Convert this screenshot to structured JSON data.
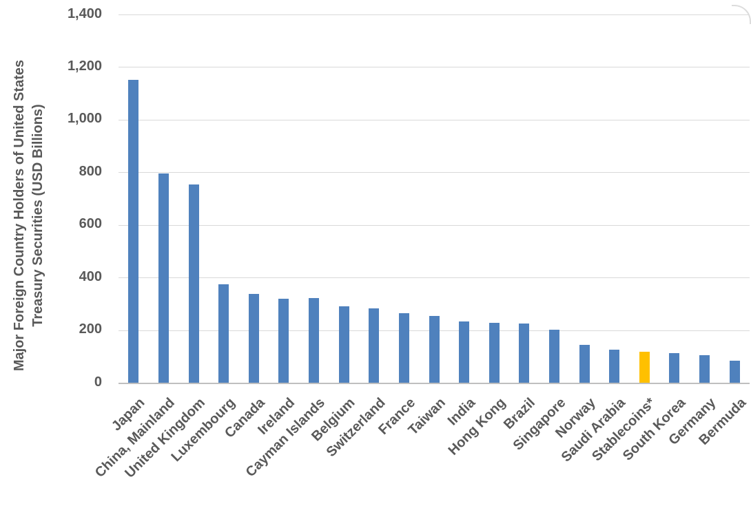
{
  "chart_data": {
    "type": "bar",
    "title": "",
    "ylabel_line1": "Major Foreign Country Holders of United States",
    "ylabel_line2": "Treasury Securities (USD Billions)",
    "xlabel": "",
    "categories": [
      "Japan",
      "China, Mainland",
      "United Kingdom",
      "Luxembourg",
      "Canada",
      "Ireland",
      "Cayman Islands",
      "Belgium",
      "Switzerland",
      "France",
      "Taiwan",
      "India",
      "Hong Kong",
      "Brazil",
      "Singapore",
      "Norway",
      "Saudi Arabia",
      "Stablecoins*",
      "South Korea",
      "Germany",
      "Bermuda"
    ],
    "values": [
      1152,
      798,
      755,
      375,
      340,
      320,
      322,
      293,
      283,
      266,
      255,
      235,
      229,
      226,
      203,
      144,
      128,
      120,
      113,
      107,
      86
    ],
    "bar_color": "#4F81BD",
    "highlight": {
      "category": "Stablecoins*",
      "color": "#FFC000"
    },
    "ylim": [
      0,
      1400
    ],
    "y_tick_interval": 200,
    "y_tick_labels": [
      "0",
      "200",
      "400",
      "600",
      "800",
      "1,000",
      "1,200",
      "1,400"
    ],
    "grid": "horizontal-only",
    "legend": "none",
    "text_color": "#595959",
    "gridline_color": "#D9D9D9",
    "axis_line_color": "#BFBFBF"
  }
}
